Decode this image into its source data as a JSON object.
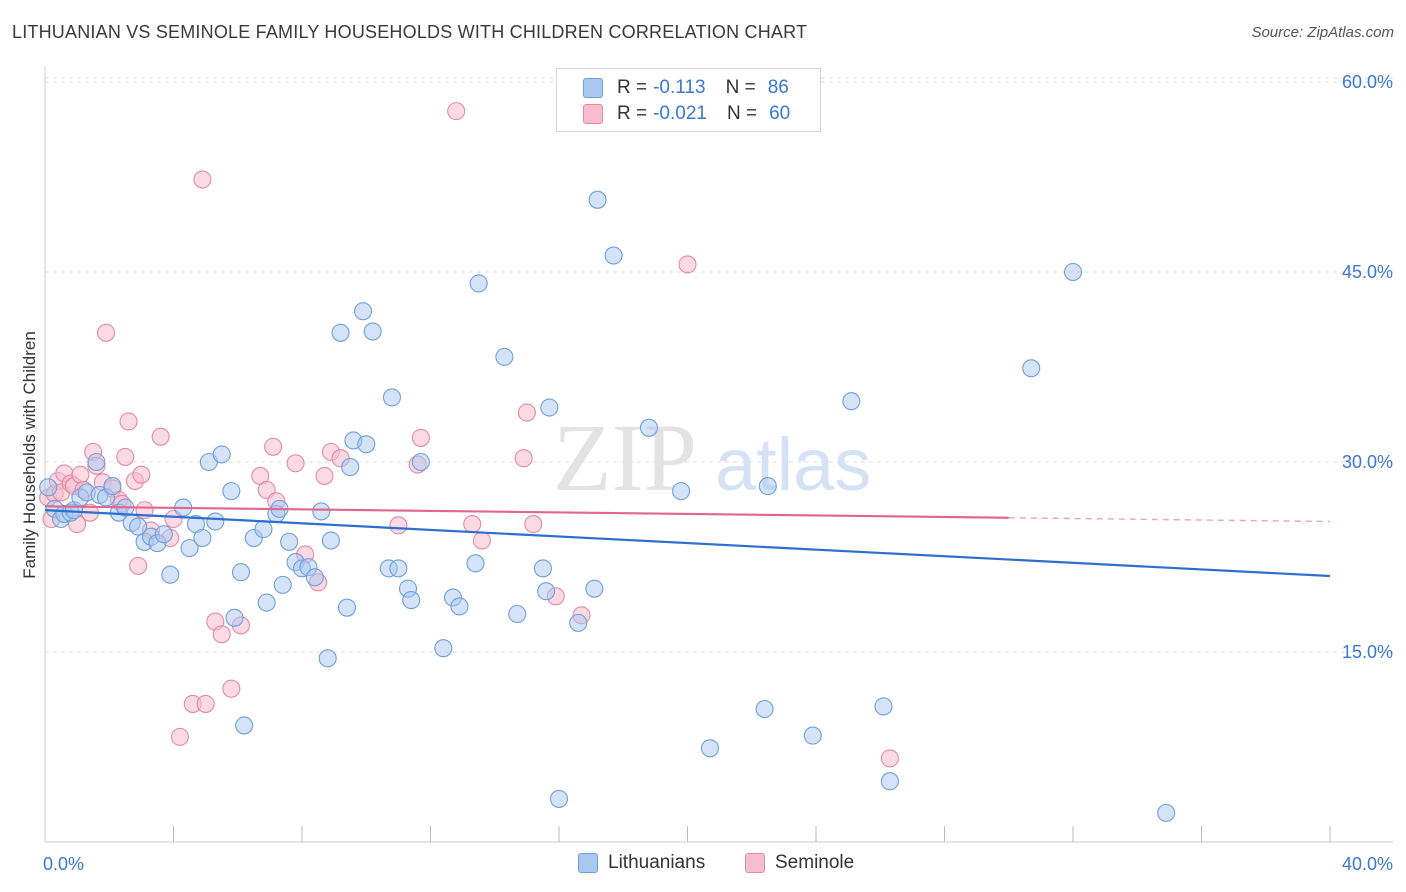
{
  "title": "LITHUANIAN VS SEMINOLE FAMILY HOUSEHOLDS WITH CHILDREN CORRELATION CHART",
  "source": "Source: ZipAtlas.com",
  "watermark": {
    "zip": "ZIP",
    "atlas": "atlas"
  },
  "legend": {
    "rows": [
      {
        "r_label": "R =",
        "r_value": "-0.113",
        "n_label": "N =",
        "n_value": "86"
      },
      {
        "r_label": "R =",
        "r_value": "-0.021",
        "n_label": "N =",
        "n_value": "60"
      }
    ]
  },
  "bottom_legend": [
    "Lithuanians",
    "Seminole"
  ],
  "colors": {
    "lithuanians_fill": "#a9c8f0",
    "lithuanians_stroke": "#6f9fdc",
    "lithuanians_line": "#2d6fce",
    "seminole_fill": "#f7bccd",
    "seminole_stroke": "#e48aa6",
    "seminole_line": "#e0668f",
    "tick_label": "#3b78d4",
    "grid": "#dddddd"
  },
  "chart_data": {
    "type": "scatter",
    "title": "LITHUANIAN VS SEMINOLE FAMILY HOUSEHOLDS WITH CHILDREN CORRELATION CHART",
    "xlabel": "",
    "ylabel": "Family Households with Children",
    "xlim": [
      0,
      40
    ],
    "ylim": [
      0,
      60
    ],
    "x_tick_labels": [
      "0.0%",
      "40.0%"
    ],
    "y_tick_labels": [
      "15.0%",
      "30.0%",
      "45.0%",
      "60.0%"
    ],
    "y_ticks": [
      15,
      30,
      45,
      60
    ],
    "grid": true,
    "legend_position": "top-center",
    "series": [
      {
        "name": "Lithuanians",
        "r": -0.113,
        "n": 86,
        "trend": {
          "x": [
            0,
            40
          ],
          "y": [
            26.2,
            21.0
          ]
        },
        "points": [
          [
            0.1,
            28.0
          ],
          [
            0.3,
            26.3
          ],
          [
            0.5,
            25.5
          ],
          [
            0.6,
            25.9
          ],
          [
            0.8,
            26.0
          ],
          [
            0.9,
            26.2
          ],
          [
            1.1,
            27.2
          ],
          [
            1.3,
            27.6
          ],
          [
            1.6,
            30.0
          ],
          [
            1.7,
            27.4
          ],
          [
            1.9,
            27.2
          ],
          [
            2.1,
            28.1
          ],
          [
            2.3,
            26.0
          ],
          [
            2.5,
            26.4
          ],
          [
            2.7,
            25.2
          ],
          [
            2.9,
            24.9
          ],
          [
            3.1,
            23.7
          ],
          [
            3.3,
            24.1
          ],
          [
            3.5,
            23.6
          ],
          [
            3.7,
            24.3
          ],
          [
            3.9,
            21.1
          ],
          [
            4.3,
            26.4
          ],
          [
            4.5,
            23.2
          ],
          [
            4.7,
            25.1
          ],
          [
            4.9,
            24.0
          ],
          [
            5.1,
            30.0
          ],
          [
            5.3,
            25.3
          ],
          [
            5.5,
            30.6
          ],
          [
            5.8,
            27.7
          ],
          [
            5.9,
            17.7
          ],
          [
            6.1,
            21.3
          ],
          [
            6.2,
            9.2
          ],
          [
            6.5,
            24.0
          ],
          [
            6.8,
            24.7
          ],
          [
            6.9,
            18.9
          ],
          [
            7.2,
            25.9
          ],
          [
            7.3,
            26.3
          ],
          [
            7.4,
            20.3
          ],
          [
            7.6,
            23.7
          ],
          [
            7.8,
            22.1
          ],
          [
            8.0,
            21.6
          ],
          [
            8.2,
            21.7
          ],
          [
            8.4,
            20.9
          ],
          [
            8.6,
            26.1
          ],
          [
            8.8,
            14.5
          ],
          [
            8.9,
            23.8
          ],
          [
            9.2,
            40.2
          ],
          [
            9.4,
            18.5
          ],
          [
            9.5,
            29.6
          ],
          [
            9.6,
            31.7
          ],
          [
            9.9,
            41.9
          ],
          [
            10.0,
            31.4
          ],
          [
            10.2,
            40.3
          ],
          [
            10.7,
            21.6
          ],
          [
            10.8,
            35.1
          ],
          [
            11.0,
            21.6
          ],
          [
            11.3,
            20.0
          ],
          [
            11.4,
            19.1
          ],
          [
            11.7,
            30.0
          ],
          [
            12.4,
            15.3
          ],
          [
            12.7,
            19.3
          ],
          [
            12.9,
            18.6
          ],
          [
            13.4,
            22.0
          ],
          [
            13.5,
            44.1
          ],
          [
            14.3,
            38.3
          ],
          [
            14.7,
            18.0
          ],
          [
            15.5,
            21.6
          ],
          [
            15.6,
            19.8
          ],
          [
            15.7,
            34.3
          ],
          [
            16.0,
            3.4
          ],
          [
            16.6,
            17.3
          ],
          [
            17.1,
            20.0
          ],
          [
            17.2,
            50.7
          ],
          [
            17.7,
            46.3
          ],
          [
            18.8,
            32.7
          ],
          [
            19.8,
            27.7
          ],
          [
            20.7,
            7.4
          ],
          [
            22.4,
            10.5
          ],
          [
            22.5,
            28.1
          ],
          [
            23.9,
            8.4
          ],
          [
            25.1,
            34.8
          ],
          [
            26.1,
            10.7
          ],
          [
            26.3,
            4.8
          ],
          [
            30.7,
            37.4
          ],
          [
            32.0,
            45.0
          ],
          [
            34.9,
            2.3
          ]
        ]
      },
      {
        "name": "Seminole",
        "r": -0.021,
        "n": 60,
        "trend": {
          "x": [
            0,
            30
          ],
          "y": [
            26.5,
            25.6
          ]
        },
        "trend_dashed": {
          "x": [
            30,
            40
          ],
          "y": [
            25.6,
            25.3
          ]
        },
        "points": [
          [
            0.1,
            27.2
          ],
          [
            0.2,
            25.5
          ],
          [
            0.3,
            27.5
          ],
          [
            0.4,
            28.5
          ],
          [
            0.5,
            27.6
          ],
          [
            0.6,
            29.1
          ],
          [
            0.8,
            28.3
          ],
          [
            0.9,
            28.1
          ],
          [
            1.0,
            25.1
          ],
          [
            1.1,
            29.0
          ],
          [
            1.2,
            27.8
          ],
          [
            1.4,
            26.0
          ],
          [
            1.5,
            30.8
          ],
          [
            1.6,
            29.7
          ],
          [
            1.8,
            28.4
          ],
          [
            1.9,
            40.2
          ],
          [
            2.1,
            27.9
          ],
          [
            2.3,
            27.0
          ],
          [
            2.4,
            26.7
          ],
          [
            2.5,
            30.4
          ],
          [
            2.6,
            33.2
          ],
          [
            2.8,
            28.5
          ],
          [
            2.9,
            21.8
          ],
          [
            3.0,
            29.0
          ],
          [
            3.1,
            26.2
          ],
          [
            3.3,
            24.6
          ],
          [
            3.6,
            32.0
          ],
          [
            3.9,
            24.0
          ],
          [
            4.0,
            25.5
          ],
          [
            4.2,
            8.3
          ],
          [
            4.6,
            10.9
          ],
          [
            4.9,
            52.3
          ],
          [
            5.0,
            10.9
          ],
          [
            5.3,
            17.4
          ],
          [
            5.5,
            16.4
          ],
          [
            5.8,
            12.1
          ],
          [
            6.1,
            17.1
          ],
          [
            6.7,
            28.9
          ],
          [
            6.9,
            27.8
          ],
          [
            7.1,
            31.2
          ],
          [
            7.2,
            26.9
          ],
          [
            7.8,
            29.9
          ],
          [
            8.1,
            22.7
          ],
          [
            8.5,
            20.5
          ],
          [
            8.7,
            28.9
          ],
          [
            8.9,
            30.8
          ],
          [
            9.2,
            30.3
          ],
          [
            11.0,
            25.0
          ],
          [
            11.6,
            29.8
          ],
          [
            11.7,
            31.9
          ],
          [
            12.8,
            57.7
          ],
          [
            13.3,
            25.1
          ],
          [
            13.6,
            23.8
          ],
          [
            14.9,
            30.3
          ],
          [
            15.0,
            33.9
          ],
          [
            15.2,
            25.1
          ],
          [
            15.9,
            19.4
          ],
          [
            16.7,
            17.9
          ],
          [
            20.0,
            45.6
          ],
          [
            26.3,
            6.6
          ]
        ]
      }
    ]
  }
}
